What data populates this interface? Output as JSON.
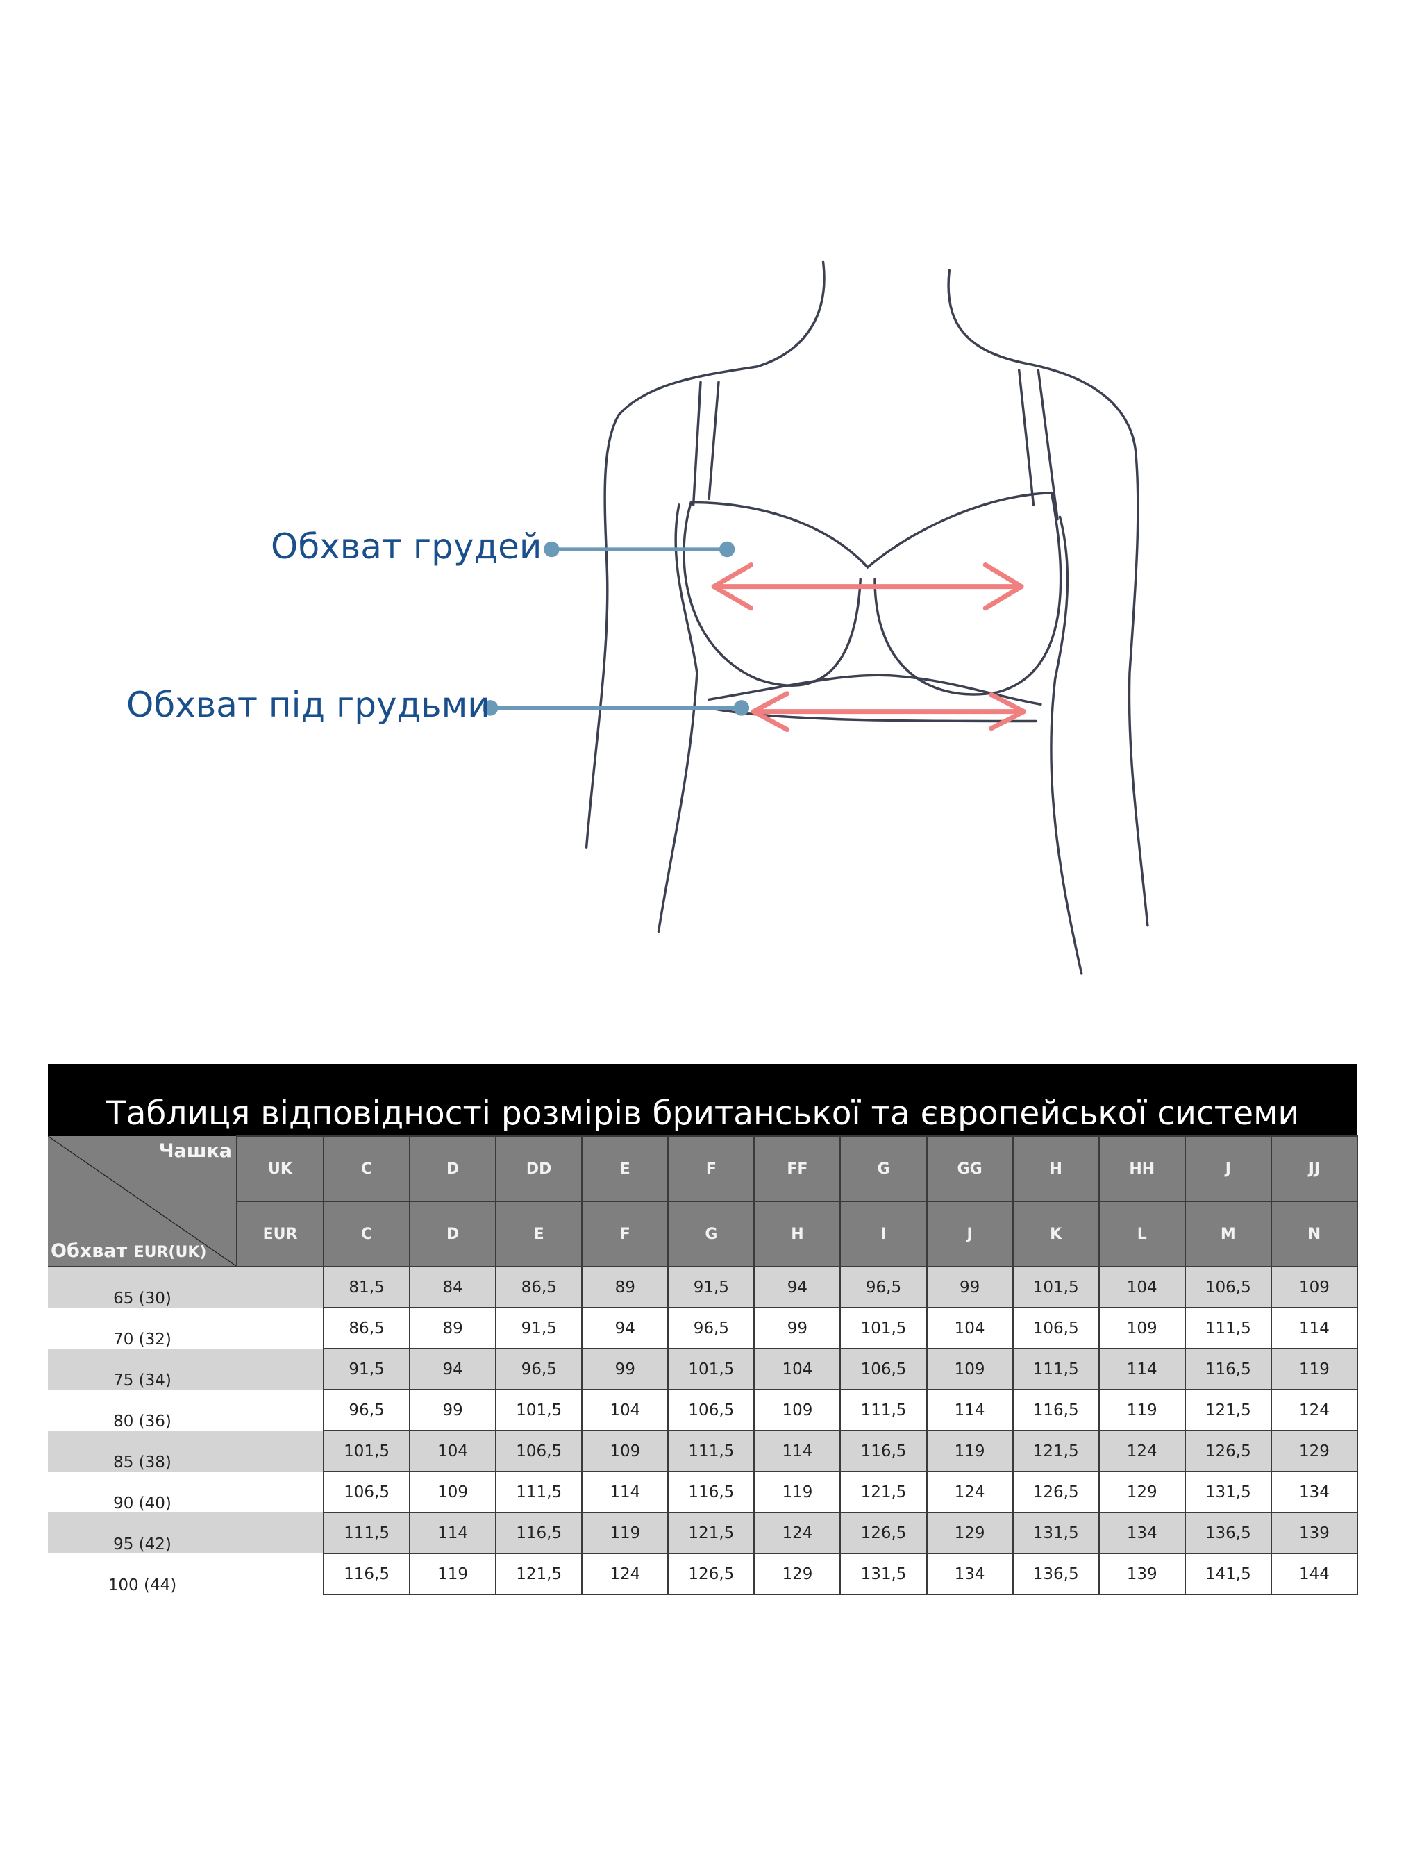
{
  "measurements": {
    "bust_label": "Обхват грудей",
    "underbust_label": "Обхват під грудьми",
    "line_color": "#6a9ab8",
    "arrow_color": "#f08080",
    "label_color": "#1a4f8c"
  },
  "table": {
    "title": "Таблиця відповідності розмірів британської та європейської системи",
    "corner_cup": "Чашка",
    "corner_girth": "Обхват",
    "corner_girth_unit": "EUR(UK)",
    "uk_label": "UK",
    "eur_label": "EUR",
    "uk_cups": [
      "C",
      "D",
      "DD",
      "E",
      "F",
      "FF",
      "G",
      "GG",
      "H",
      "HH",
      "J",
      "JJ"
    ],
    "eur_cups": [
      "C",
      "D",
      "E",
      "F",
      "G",
      "H",
      "I",
      "J",
      "K",
      "L",
      "M",
      "N"
    ],
    "rows": [
      {
        "band": "65 (30)",
        "values": [
          "81,5",
          "84",
          "86,5",
          "89",
          "91,5",
          "94",
          "96,5",
          "99",
          "101,5",
          "104",
          "106,5",
          "109"
        ]
      },
      {
        "band": "70 (32)",
        "values": [
          "86,5",
          "89",
          "91,5",
          "94",
          "96,5",
          "99",
          "101,5",
          "104",
          "106,5",
          "109",
          "111,5",
          "114"
        ]
      },
      {
        "band": "75 (34)",
        "values": [
          "91,5",
          "94",
          "96,5",
          "99",
          "101,5",
          "104",
          "106,5",
          "109",
          "111,5",
          "114",
          "116,5",
          "119"
        ]
      },
      {
        "band": "80 (36)",
        "values": [
          "96,5",
          "99",
          "101,5",
          "104",
          "106,5",
          "109",
          "111,5",
          "114",
          "116,5",
          "119",
          "121,5",
          "124"
        ]
      },
      {
        "band": "85 (38)",
        "values": [
          "101,5",
          "104",
          "106,5",
          "109",
          "111,5",
          "114",
          "116,5",
          "119",
          "121,5",
          "124",
          "126,5",
          "129"
        ]
      },
      {
        "band": "90 (40)",
        "values": [
          "106,5",
          "109",
          "111,5",
          "114",
          "116,5",
          "119",
          "121,5",
          "124",
          "126,5",
          "129",
          "131,5",
          "134"
        ]
      },
      {
        "band": "95 (42)",
        "values": [
          "111,5",
          "114",
          "116,5",
          "119",
          "121,5",
          "124",
          "126,5",
          "129",
          "131,5",
          "134",
          "136,5",
          "139"
        ]
      },
      {
        "band": "100 (44)",
        "values": [
          "116,5",
          "119",
          "121,5",
          "124",
          "126,5",
          "129",
          "131,5",
          "134",
          "136,5",
          "139",
          "141,5",
          "144"
        ]
      }
    ]
  }
}
